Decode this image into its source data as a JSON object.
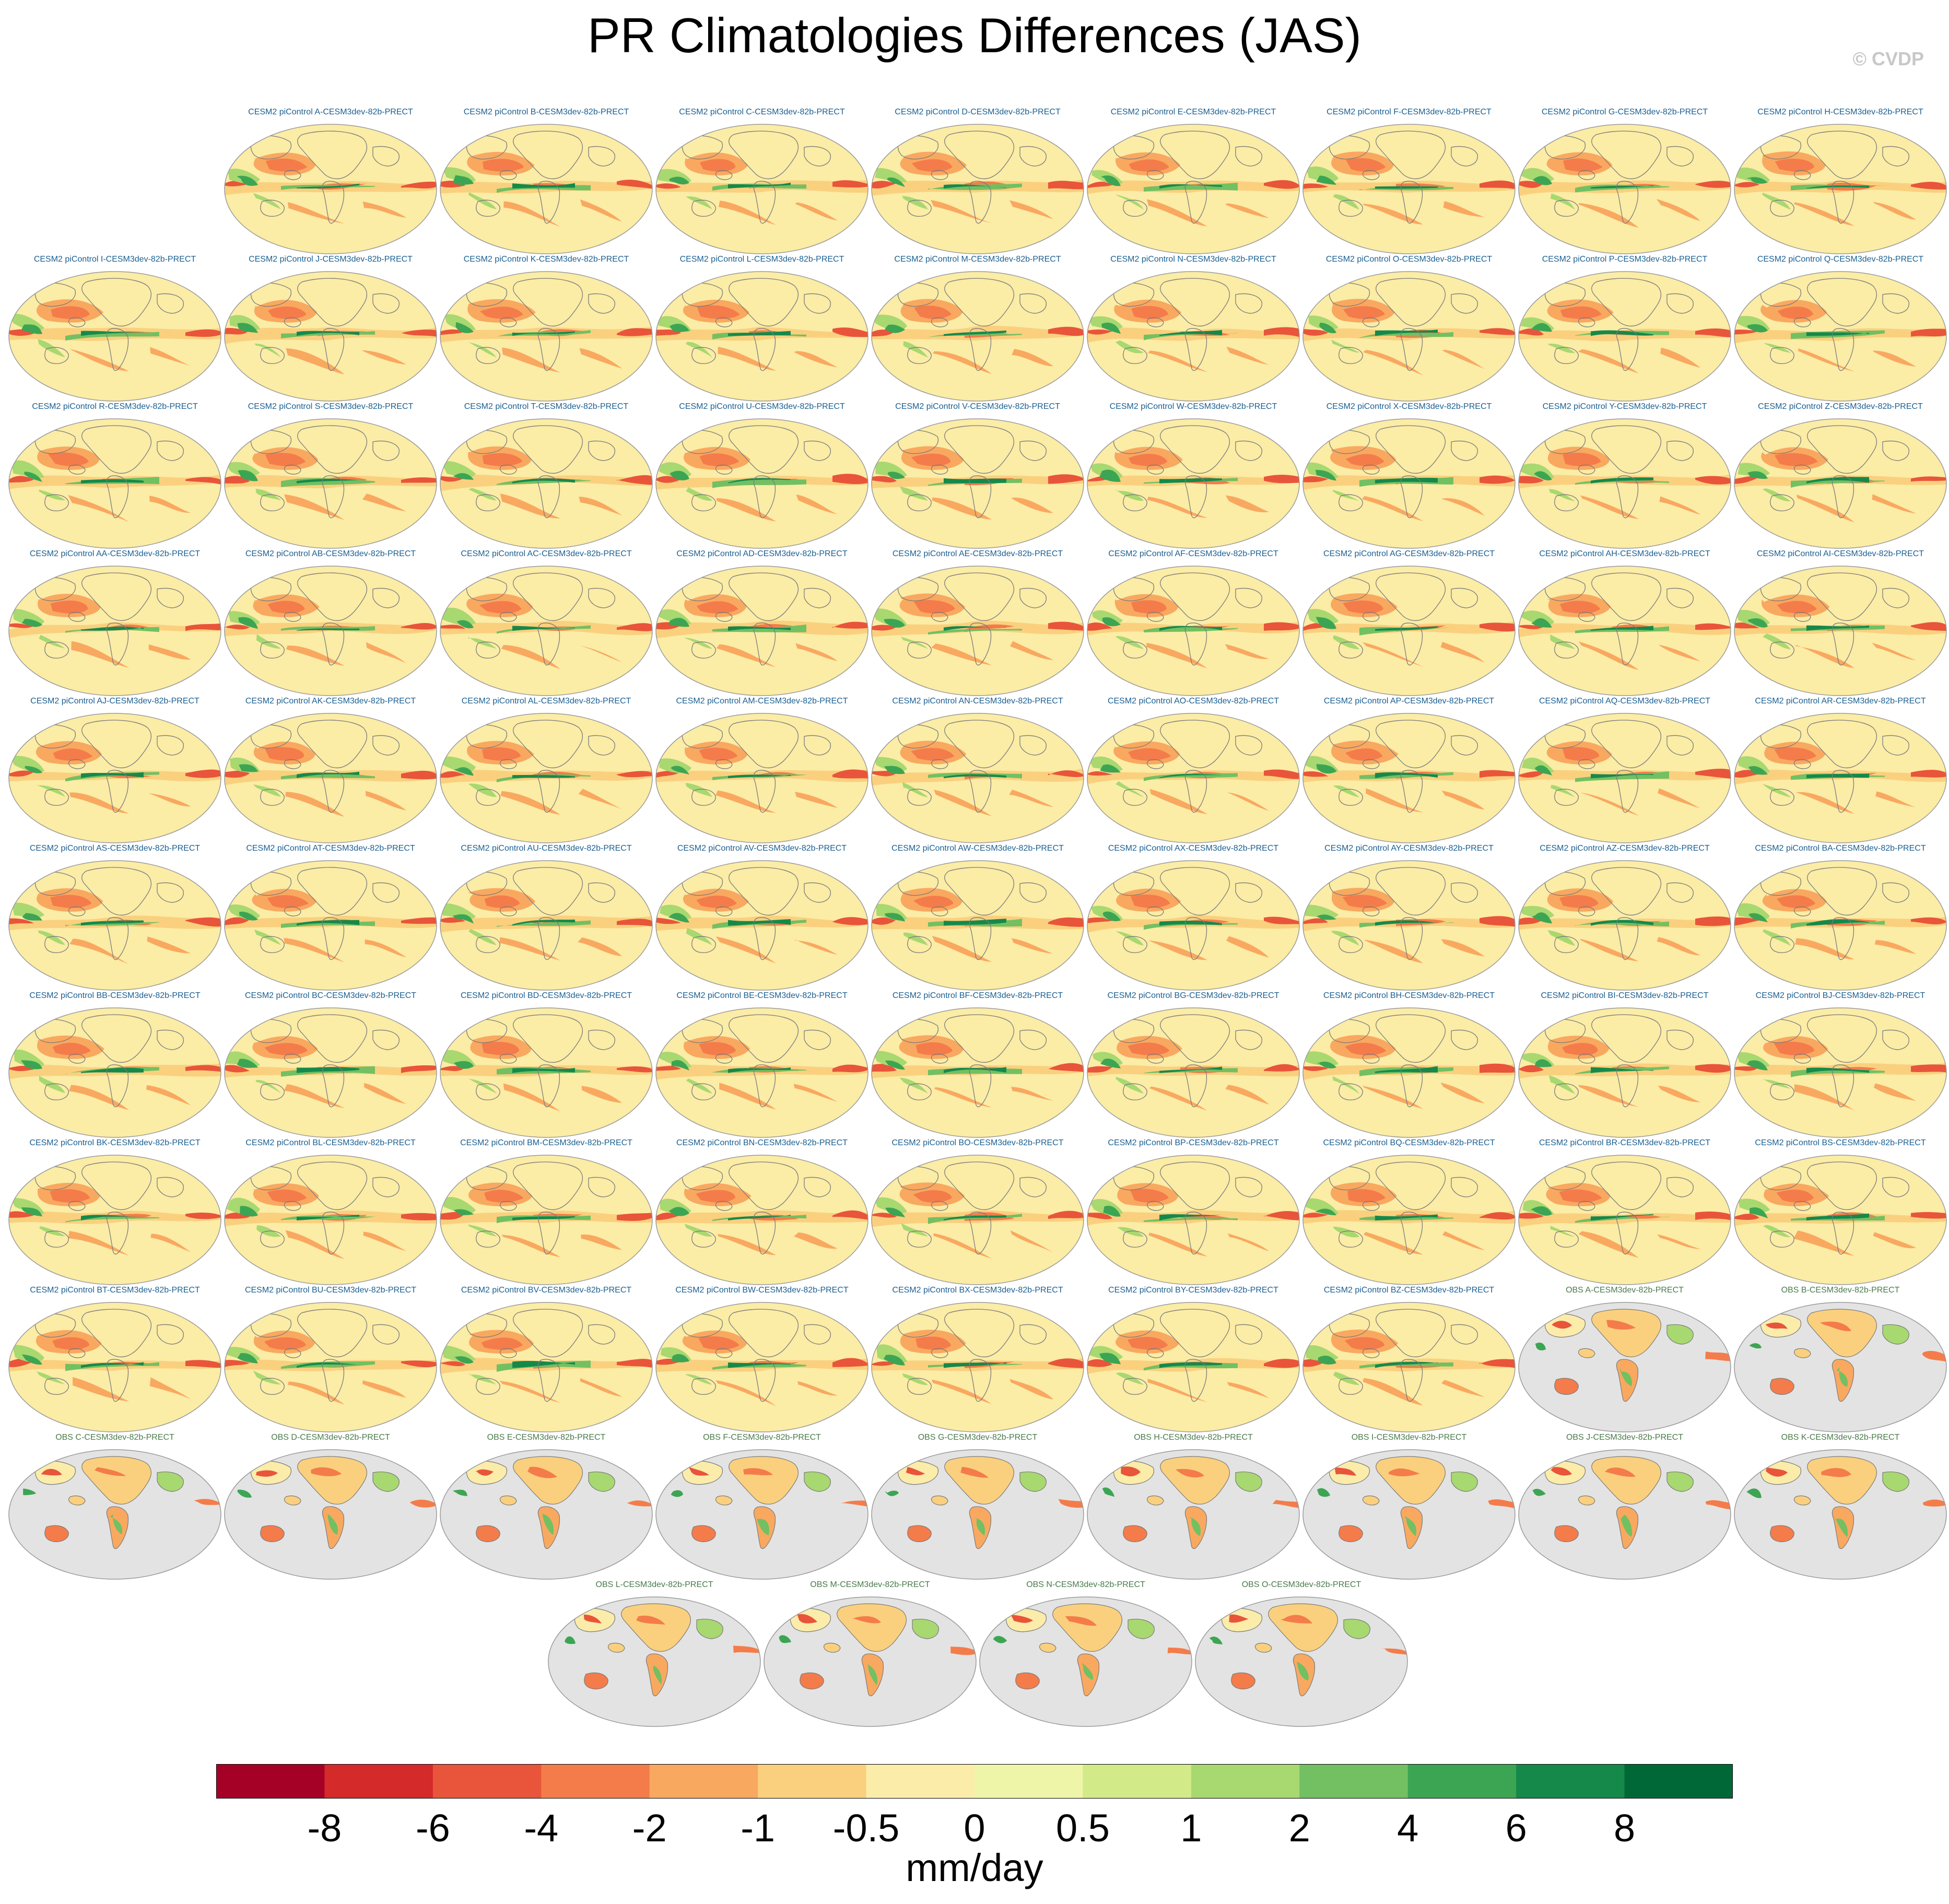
{
  "title": "PR Climatologies Differences (JAS)",
  "watermark": "© CVDP",
  "colors": {
    "model_title": "#1a5f91",
    "obs_title": "#4a7a4a",
    "ocean_obs": "#e3e3e3",
    "coast": "#7a7a7a"
  },
  "panels": [
    {
      "title": "CESM2 piControl A-CESM3dev-82b-PRECT",
      "kind": "model"
    },
    {
      "title": "CESM2 piControl B-CESM3dev-82b-PRECT",
      "kind": "model"
    },
    {
      "title": "CESM2 piControl C-CESM3dev-82b-PRECT",
      "kind": "model"
    },
    {
      "title": "CESM2 piControl D-CESM3dev-82b-PRECT",
      "kind": "model"
    },
    {
      "title": "CESM2 piControl E-CESM3dev-82b-PRECT",
      "kind": "model"
    },
    {
      "title": "CESM2 piControl F-CESM3dev-82b-PRECT",
      "kind": "model"
    },
    {
      "title": "CESM2 piControl G-CESM3dev-82b-PRECT",
      "kind": "model"
    },
    {
      "title": "CESM2 piControl H-CESM3dev-82b-PRECT",
      "kind": "model"
    },
    {
      "title": "CESM2 piControl I-CESM3dev-82b-PRECT",
      "kind": "model"
    },
    {
      "title": "CESM2 piControl J-CESM3dev-82b-PRECT",
      "kind": "model"
    },
    {
      "title": "CESM2 piControl K-CESM3dev-82b-PRECT",
      "kind": "model"
    },
    {
      "title": "CESM2 piControl L-CESM3dev-82b-PRECT",
      "kind": "model"
    },
    {
      "title": "CESM2 piControl M-CESM3dev-82b-PRECT",
      "kind": "model"
    },
    {
      "title": "CESM2 piControl N-CESM3dev-82b-PRECT",
      "kind": "model"
    },
    {
      "title": "CESM2 piControl O-CESM3dev-82b-PRECT",
      "kind": "model"
    },
    {
      "title": "CESM2 piControl P-CESM3dev-82b-PRECT",
      "kind": "model"
    },
    {
      "title": "CESM2 piControl Q-CESM3dev-82b-PRECT",
      "kind": "model"
    },
    {
      "title": "CESM2 piControl R-CESM3dev-82b-PRECT",
      "kind": "model"
    },
    {
      "title": "CESM2 piControl S-CESM3dev-82b-PRECT",
      "kind": "model"
    },
    {
      "title": "CESM2 piControl T-CESM3dev-82b-PRECT",
      "kind": "model"
    },
    {
      "title": "CESM2 piControl U-CESM3dev-82b-PRECT",
      "kind": "model"
    },
    {
      "title": "CESM2 piControl V-CESM3dev-82b-PRECT",
      "kind": "model"
    },
    {
      "title": "CESM2 piControl W-CESM3dev-82b-PRECT",
      "kind": "model"
    },
    {
      "title": "CESM2 piControl X-CESM3dev-82b-PRECT",
      "kind": "model"
    },
    {
      "title": "CESM2 piControl Y-CESM3dev-82b-PRECT",
      "kind": "model"
    },
    {
      "title": "CESM2 piControl Z-CESM3dev-82b-PRECT",
      "kind": "model"
    },
    {
      "title": "CESM2 piControl AA-CESM3dev-82b-PRECT",
      "kind": "model"
    },
    {
      "title": "CESM2 piControl AB-CESM3dev-82b-PRECT",
      "kind": "model"
    },
    {
      "title": "CESM2 piControl AC-CESM3dev-82b-PRECT",
      "kind": "model"
    },
    {
      "title": "CESM2 piControl AD-CESM3dev-82b-PRECT",
      "kind": "model"
    },
    {
      "title": "CESM2 piControl AE-CESM3dev-82b-PRECT",
      "kind": "model"
    },
    {
      "title": "CESM2 piControl AF-CESM3dev-82b-PRECT",
      "kind": "model"
    },
    {
      "title": "CESM2 piControl AG-CESM3dev-82b-PRECT",
      "kind": "model"
    },
    {
      "title": "CESM2 piControl AH-CESM3dev-82b-PRECT",
      "kind": "model"
    },
    {
      "title": "CESM2 piControl AI-CESM3dev-82b-PRECT",
      "kind": "model"
    },
    {
      "title": "CESM2 piControl AJ-CESM3dev-82b-PRECT",
      "kind": "model"
    },
    {
      "title": "CESM2 piControl AK-CESM3dev-82b-PRECT",
      "kind": "model"
    },
    {
      "title": "CESM2 piControl AL-CESM3dev-82b-PRECT",
      "kind": "model"
    },
    {
      "title": "CESM2 piControl AM-CESM3dev-82b-PRECT",
      "kind": "model"
    },
    {
      "title": "CESM2 piControl AN-CESM3dev-82b-PRECT",
      "kind": "model"
    },
    {
      "title": "CESM2 piControl AO-CESM3dev-82b-PRECT",
      "kind": "model"
    },
    {
      "title": "CESM2 piControl AP-CESM3dev-82b-PRECT",
      "kind": "model"
    },
    {
      "title": "CESM2 piControl AQ-CESM3dev-82b-PRECT",
      "kind": "model"
    },
    {
      "title": "CESM2 piControl AR-CESM3dev-82b-PRECT",
      "kind": "model"
    },
    {
      "title": "CESM2 piControl AS-CESM3dev-82b-PRECT",
      "kind": "model"
    },
    {
      "title": "CESM2 piControl AT-CESM3dev-82b-PRECT",
      "kind": "model"
    },
    {
      "title": "CESM2 piControl AU-CESM3dev-82b-PRECT",
      "kind": "model"
    },
    {
      "title": "CESM2 piControl AV-CESM3dev-82b-PRECT",
      "kind": "model"
    },
    {
      "title": "CESM2 piControl AW-CESM3dev-82b-PRECT",
      "kind": "model"
    },
    {
      "title": "CESM2 piControl AX-CESM3dev-82b-PRECT",
      "kind": "model"
    },
    {
      "title": "CESM2 piControl AY-CESM3dev-82b-PRECT",
      "kind": "model"
    },
    {
      "title": "CESM2 piControl AZ-CESM3dev-82b-PRECT",
      "kind": "model"
    },
    {
      "title": "CESM2 piControl BA-CESM3dev-82b-PRECT",
      "kind": "model"
    },
    {
      "title": "CESM2 piControl BB-CESM3dev-82b-PRECT",
      "kind": "model"
    },
    {
      "title": "CESM2 piControl BC-CESM3dev-82b-PRECT",
      "kind": "model"
    },
    {
      "title": "CESM2 piControl BD-CESM3dev-82b-PRECT",
      "kind": "model"
    },
    {
      "title": "CESM2 piControl BE-CESM3dev-82b-PRECT",
      "kind": "model"
    },
    {
      "title": "CESM2 piControl BF-CESM3dev-82b-PRECT",
      "kind": "model"
    },
    {
      "title": "CESM2 piControl BG-CESM3dev-82b-PRECT",
      "kind": "model"
    },
    {
      "title": "CESM2 piControl BH-CESM3dev-82b-PRECT",
      "kind": "model"
    },
    {
      "title": "CESM2 piControl BI-CESM3dev-82b-PRECT",
      "kind": "model"
    },
    {
      "title": "CESM2 piControl BJ-CESM3dev-82b-PRECT",
      "kind": "model"
    },
    {
      "title": "CESM2 piControl BK-CESM3dev-82b-PRECT",
      "kind": "model"
    },
    {
      "title": "CESM2 piControl BL-CESM3dev-82b-PRECT",
      "kind": "model"
    },
    {
      "title": "CESM2 piControl BM-CESM3dev-82b-PRECT",
      "kind": "model"
    },
    {
      "title": "CESM2 piControl BN-CESM3dev-82b-PRECT",
      "kind": "model"
    },
    {
      "title": "CESM2 piControl BO-CESM3dev-82b-PRECT",
      "kind": "model"
    },
    {
      "title": "CESM2 piControl BP-CESM3dev-82b-PRECT",
      "kind": "model"
    },
    {
      "title": "CESM2 piControl BQ-CESM3dev-82b-PRECT",
      "kind": "model"
    },
    {
      "title": "CESM2 piControl BR-CESM3dev-82b-PRECT",
      "kind": "model"
    },
    {
      "title": "CESM2 piControl BS-CESM3dev-82b-PRECT",
      "kind": "model"
    },
    {
      "title": "CESM2 piControl BT-CESM3dev-82b-PRECT",
      "kind": "model"
    },
    {
      "title": "CESM2 piControl BU-CESM3dev-82b-PRECT",
      "kind": "model"
    },
    {
      "title": "CESM2 piControl BV-CESM3dev-82b-PRECT",
      "kind": "model"
    },
    {
      "title": "CESM2 piControl BW-CESM3dev-82b-PRECT",
      "kind": "model"
    },
    {
      "title": "CESM2 piControl BX-CESM3dev-82b-PRECT",
      "kind": "model"
    },
    {
      "title": "CESM2 piControl BY-CESM3dev-82b-PRECT",
      "kind": "model"
    },
    {
      "title": "CESM2 piControl BZ-CESM3dev-82b-PRECT",
      "kind": "model"
    },
    {
      "title": "OBS A-CESM3dev-82b-PRECT",
      "kind": "obs"
    },
    {
      "title": "OBS B-CESM3dev-82b-PRECT",
      "kind": "obs"
    },
    {
      "title": "OBS C-CESM3dev-82b-PRECT",
      "kind": "obs"
    },
    {
      "title": "OBS D-CESM3dev-82b-PRECT",
      "kind": "obs"
    },
    {
      "title": "OBS E-CESM3dev-82b-PRECT",
      "kind": "obs"
    },
    {
      "title": "OBS F-CESM3dev-82b-PRECT",
      "kind": "obs"
    },
    {
      "title": "OBS G-CESM3dev-82b-PRECT",
      "kind": "obs"
    },
    {
      "title": "OBS H-CESM3dev-82b-PRECT",
      "kind": "obs"
    },
    {
      "title": "OBS I-CESM3dev-82b-PRECT",
      "kind": "obs"
    },
    {
      "title": "OBS J-CESM3dev-82b-PRECT",
      "kind": "obs"
    },
    {
      "title": "OBS K-CESM3dev-82b-PRECT",
      "kind": "obs"
    },
    {
      "title": "OBS L-CESM3dev-82b-PRECT",
      "kind": "obs"
    },
    {
      "title": "OBS M-CESM3dev-82b-PRECT",
      "kind": "obs"
    },
    {
      "title": "OBS N-CESM3dev-82b-PRECT",
      "kind": "obs"
    },
    {
      "title": "OBS O-CESM3dev-82b-PRECT",
      "kind": "obs"
    }
  ],
  "colorbar": {
    "units": "mm/day",
    "labels": [
      "-8",
      "-6",
      "-4",
      "-2",
      "-1",
      "-0.5",
      "0",
      "0.5",
      "1",
      "2",
      "4",
      "6",
      "8"
    ],
    "colors": [
      "#a50026",
      "#d42a2a",
      "#e8553a",
      "#f47c4a",
      "#f9a860",
      "#fad07e",
      "#fbecaa",
      "#eef5a8",
      "#d3ea88",
      "#a8d870",
      "#72c062",
      "#3ca553",
      "#15894a",
      "#006837"
    ]
  }
}
